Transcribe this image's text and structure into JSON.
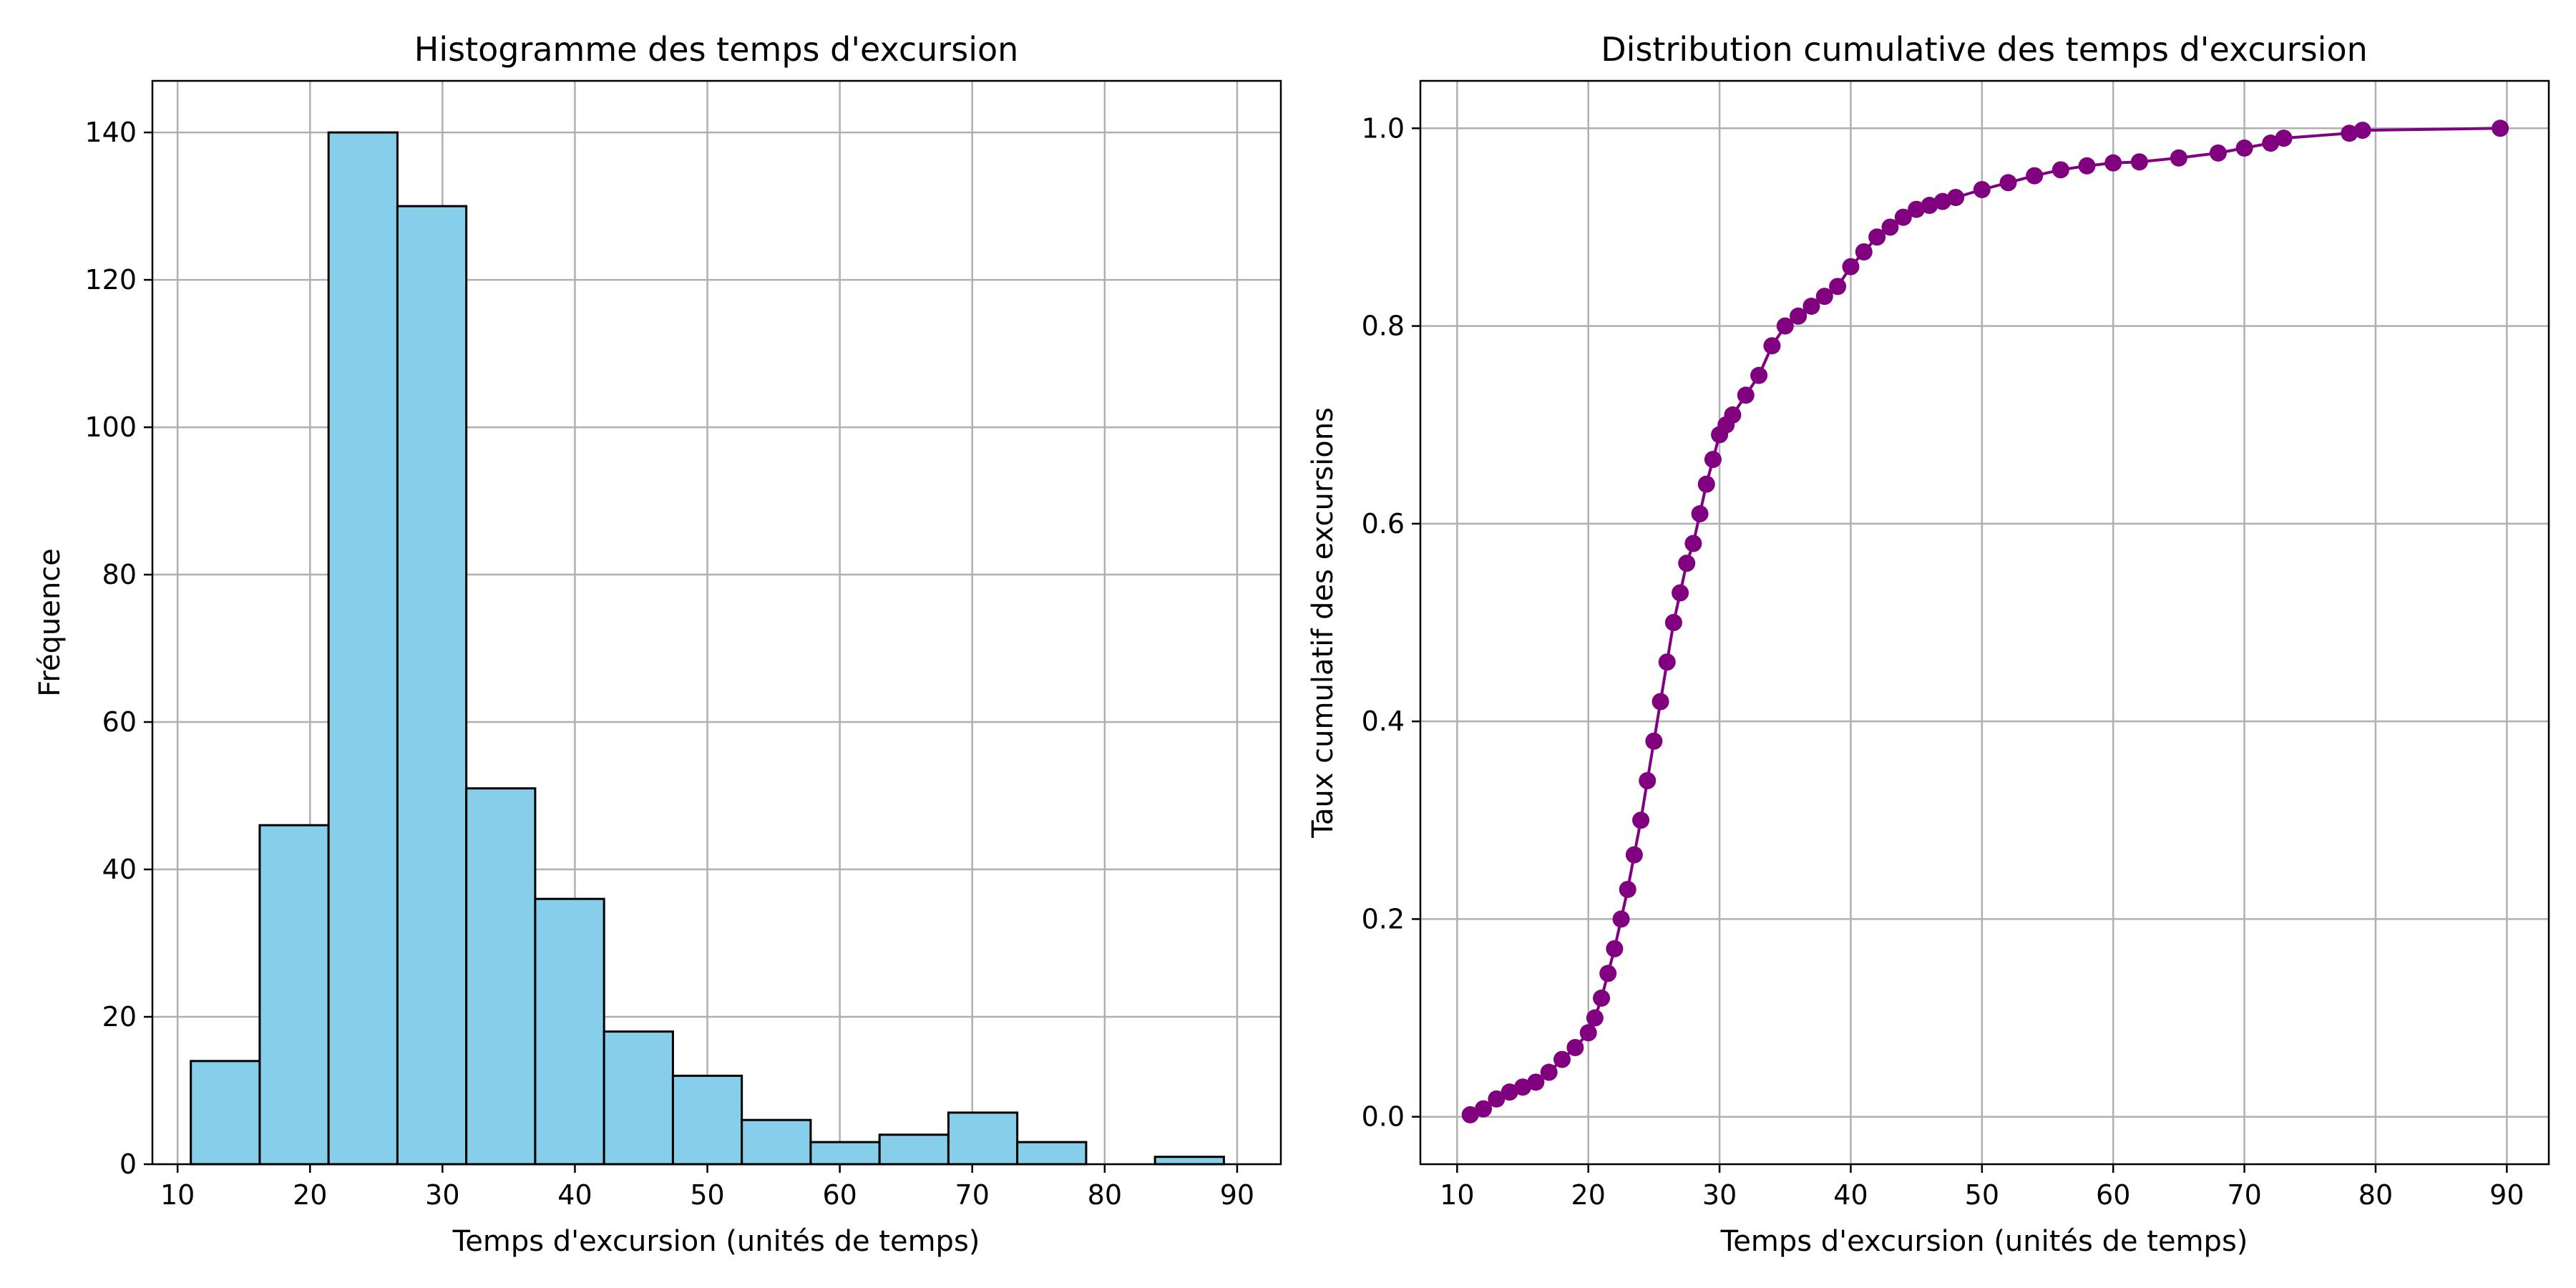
{
  "colors": {
    "histogram_fill": "#87ceeb",
    "histogram_edge": "#000000",
    "cumulative_line": "#800080",
    "grid": "#b0b0b0"
  },
  "chart_data": [
    {
      "type": "bar",
      "title": "Histogramme des temps d'excursion",
      "xlabel": "Temps d'excursion (unités de temps)",
      "ylabel": "Fréquence",
      "xlim": [
        8.1,
        93.3
      ],
      "ylim": [
        0,
        147
      ],
      "xticks": [
        10,
        20,
        30,
        40,
        50,
        60,
        70,
        80,
        90
      ],
      "yticks": [
        0,
        20,
        40,
        60,
        80,
        100,
        120,
        140
      ],
      "grid": true,
      "bin_edges": [
        11.0,
        16.2,
        21.4,
        26.6,
        31.8,
        37.0,
        42.2,
        47.4,
        52.6,
        57.8,
        63.0,
        68.2,
        73.4,
        78.6,
        83.8,
        89.0
      ],
      "values": [
        14,
        46,
        140,
        130,
        51,
        36,
        18,
        12,
        6,
        3,
        4,
        7,
        3,
        0,
        1
      ]
    },
    {
      "type": "line",
      "title": "Distribution cumulative des temps d'excursion",
      "xlabel": "Temps d'excursion (unités de temps)",
      "ylabel": "Taux cumulatif des excursions",
      "xlim": [
        7.2,
        93.2
      ],
      "ylim": [
        -0.048,
        1.048
      ],
      "xticks": [
        10,
        20,
        30,
        40,
        50,
        60,
        70,
        80,
        90
      ],
      "yticks": [
        0.0,
        0.2,
        0.4,
        0.6,
        0.8,
        1.0
      ],
      "ytick_labels": [
        "0.0",
        "0.2",
        "0.4",
        "0.6",
        "0.8",
        "1.0"
      ],
      "grid": true,
      "marker": "circle",
      "x": [
        11.0,
        12.0,
        13.0,
        14.0,
        15.0,
        16.0,
        17.0,
        18.0,
        19.0,
        20.0,
        20.5,
        21.0,
        21.5,
        22.0,
        22.5,
        23.0,
        23.5,
        24.0,
        24.5,
        25.0,
        25.5,
        26.0,
        26.5,
        27.0,
        27.5,
        28.0,
        28.5,
        29.0,
        29.5,
        30.0,
        30.5,
        31.0,
        32.0,
        33.0,
        34.0,
        35.0,
        36.0,
        37.0,
        38.0,
        39.0,
        40.0,
        41.0,
        42.0,
        43.0,
        44.0,
        45.0,
        46.0,
        47.0,
        48.0,
        50.0,
        52.0,
        54.0,
        56.0,
        58.0,
        60.0,
        62.0,
        65.0,
        68.0,
        70.0,
        72.0,
        73.0,
        78.0,
        79.0,
        89.5
      ],
      "y": [
        0.002,
        0.008,
        0.018,
        0.025,
        0.03,
        0.035,
        0.045,
        0.058,
        0.07,
        0.085,
        0.1,
        0.12,
        0.145,
        0.17,
        0.2,
        0.23,
        0.265,
        0.3,
        0.34,
        0.38,
        0.42,
        0.46,
        0.5,
        0.53,
        0.56,
        0.58,
        0.61,
        0.64,
        0.665,
        0.69,
        0.7,
        0.71,
        0.73,
        0.75,
        0.78,
        0.8,
        0.81,
        0.82,
        0.83,
        0.84,
        0.86,
        0.875,
        0.89,
        0.9,
        0.91,
        0.918,
        0.922,
        0.926,
        0.93,
        0.938,
        0.945,
        0.952,
        0.958,
        0.962,
        0.965,
        0.966,
        0.97,
        0.975,
        0.98,
        0.985,
        0.99,
        0.995,
        0.998,
        1.0
      ]
    }
  ]
}
